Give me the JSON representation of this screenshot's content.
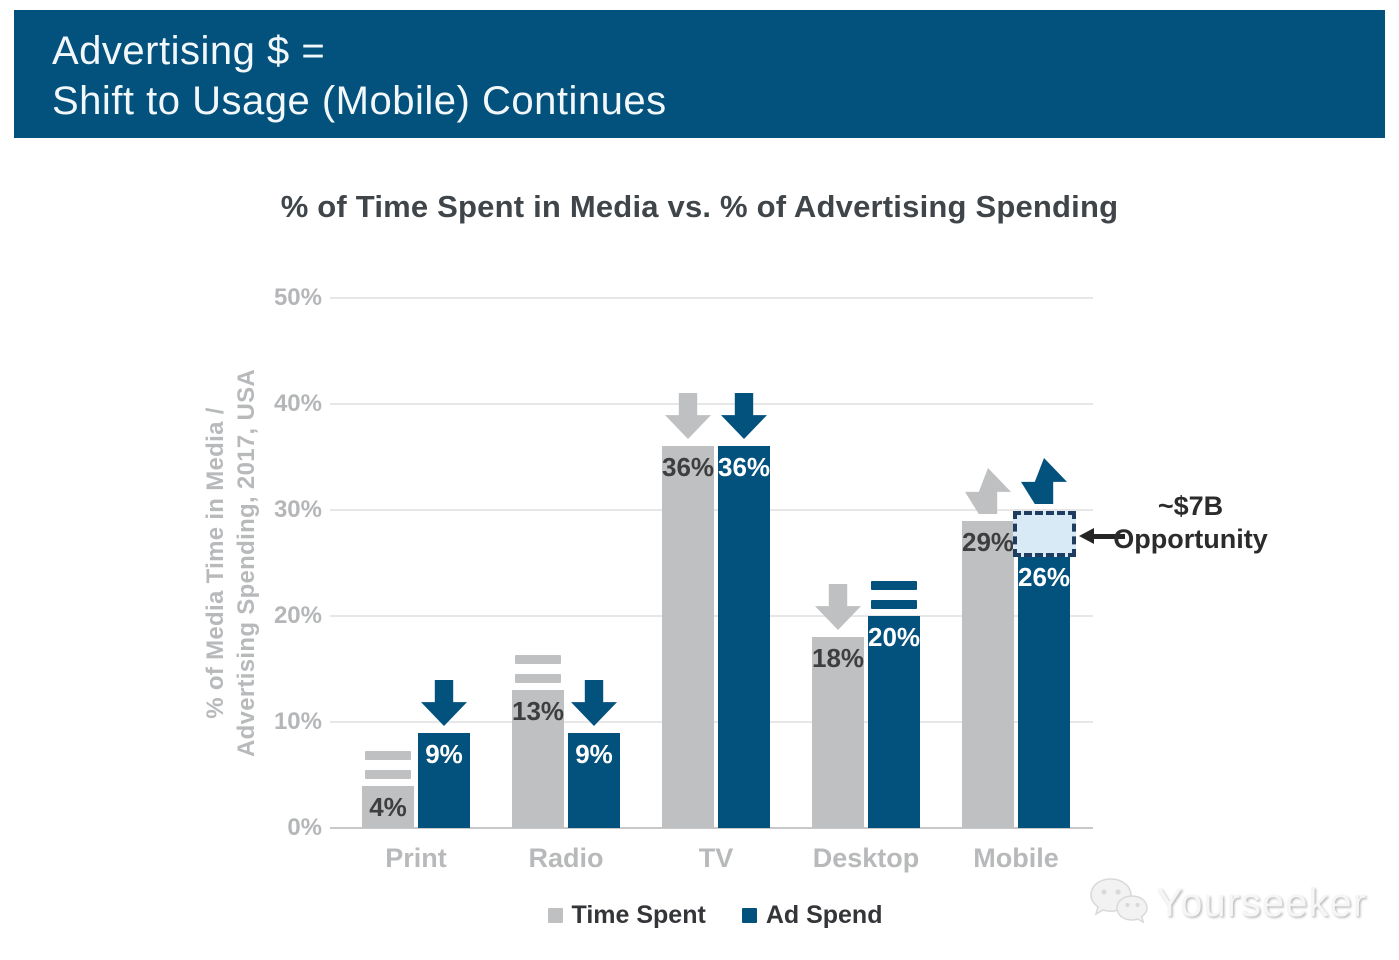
{
  "header": {
    "line1": "Advertising $ =",
    "line2": "Shift to Usage (Mobile) Continues",
    "bg_color": "#03517d",
    "text_color": "#f2f7fa"
  },
  "chart_data": {
    "type": "bar",
    "title": "% of Time Spent in Media vs. % of Advertising Spending",
    "ylabel_line1": "% of Media Time in Media /",
    "ylabel_line2": "Advertising Spending, 2017, USA",
    "categories": [
      "Print",
      "Radio",
      "TV",
      "Desktop",
      "Mobile"
    ],
    "series": [
      {
        "name": "Time Spent",
        "color": "#bfc0c1",
        "label_color": "#3c3e40",
        "values": [
          4,
          13,
          36,
          18,
          29
        ],
        "value_labels": [
          "4%",
          "13%",
          "36%",
          "18%",
          "29%"
        ],
        "trends": [
          "flat",
          "flat",
          "down",
          "down",
          "up"
        ]
      },
      {
        "name": "Ad Spend",
        "color": "#03517d",
        "label_color": "#ffffff",
        "values": [
          9,
          9,
          36,
          20,
          26
        ],
        "value_labels": [
          "9%",
          "9%",
          "36%",
          "20%",
          "26%"
        ],
        "trends": [
          "down",
          "down",
          "down",
          "flat",
          "up"
        ]
      }
    ],
    "ylim": [
      0,
      50
    ],
    "y_ticks": [
      {
        "label": "50%",
        "value": 50
      },
      {
        "label": "40%",
        "value": 40
      },
      {
        "label": "30%",
        "value": 30
      },
      {
        "label": "20%",
        "value": 20
      },
      {
        "label": "10%",
        "value": 10
      },
      {
        "label": "0%",
        "value": 0
      }
    ],
    "grid": true,
    "legend_position": "bottom"
  },
  "annotation": {
    "line1": "~$7B",
    "line2": "Opportunity",
    "box_fill": "#d8eaf6",
    "box_border": "#1e3d61"
  },
  "watermark": {
    "text": "Yourseeker"
  }
}
